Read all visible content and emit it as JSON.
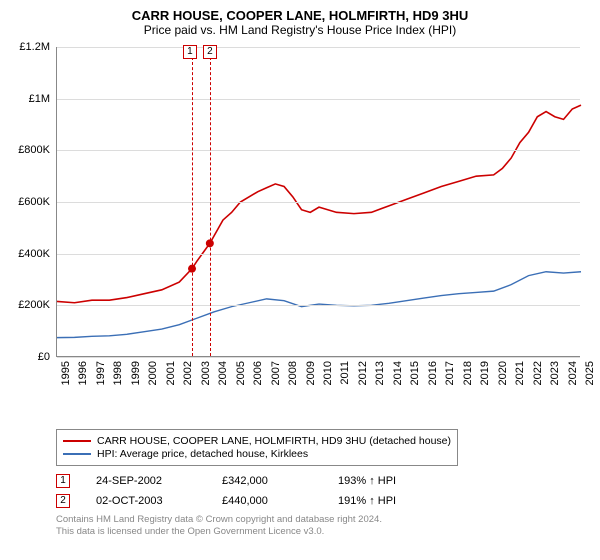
{
  "title": "CARR HOUSE, COOPER LANE, HOLMFIRTH, HD9 3HU",
  "subtitle": "Price paid vs. HM Land Registry's House Price Index (HPI)",
  "chart": {
    "type": "line",
    "background_color": "#ffffff",
    "grid_color": "#dcdcdc",
    "axis_color": "#888888",
    "ylim": [
      0,
      1200000
    ],
    "ytick_step": 200000,
    "yticks": [
      {
        "v": 0,
        "label": "£0"
      },
      {
        "v": 200000,
        "label": "£200K"
      },
      {
        "v": 400000,
        "label": "£400K"
      },
      {
        "v": 600000,
        "label": "£600K"
      },
      {
        "v": 800000,
        "label": "£800K"
      },
      {
        "v": 1000000,
        "label": "£1M"
      },
      {
        "v": 1200000,
        "label": "£1.2M"
      }
    ],
    "xlim": [
      1995,
      2025
    ],
    "xticks": [
      "1995",
      "1996",
      "1997",
      "1998",
      "1999",
      "2000",
      "2001",
      "2002",
      "2003",
      "2004",
      "2005",
      "2006",
      "2007",
      "2008",
      "2009",
      "2010",
      "2011",
      "2012",
      "2013",
      "2014",
      "2015",
      "2016",
      "2017",
      "2018",
      "2019",
      "2020",
      "2021",
      "2022",
      "2023",
      "2024",
      "2025"
    ],
    "series": [
      {
        "name": "price_paid",
        "color": "#cc0000",
        "line_width": 1.6,
        "points": [
          [
            1995,
            215000
          ],
          [
            1996,
            210000
          ],
          [
            1997,
            220000
          ],
          [
            1998,
            220000
          ],
          [
            1999,
            230000
          ],
          [
            2000,
            245000
          ],
          [
            2001,
            260000
          ],
          [
            2002,
            290000
          ],
          [
            2002.73,
            342000
          ],
          [
            2003,
            370000
          ],
          [
            2003.75,
            440000
          ],
          [
            2004,
            470000
          ],
          [
            2004.5,
            530000
          ],
          [
            2005,
            560000
          ],
          [
            2005.5,
            600000
          ],
          [
            2006,
            620000
          ],
          [
            2006.5,
            640000
          ],
          [
            2007,
            655000
          ],
          [
            2007.5,
            670000
          ],
          [
            2008,
            660000
          ],
          [
            2008.5,
            620000
          ],
          [
            2009,
            570000
          ],
          [
            2009.5,
            560000
          ],
          [
            2010,
            580000
          ],
          [
            2011,
            560000
          ],
          [
            2012,
            555000
          ],
          [
            2013,
            560000
          ],
          [
            2014,
            585000
          ],
          [
            2015,
            610000
          ],
          [
            2016,
            635000
          ],
          [
            2017,
            660000
          ],
          [
            2018,
            680000
          ],
          [
            2019,
            700000
          ],
          [
            2020,
            705000
          ],
          [
            2020.5,
            730000
          ],
          [
            2021,
            770000
          ],
          [
            2021.5,
            830000
          ],
          [
            2022,
            870000
          ],
          [
            2022.5,
            930000
          ],
          [
            2023,
            950000
          ],
          [
            2023.5,
            930000
          ],
          [
            2024,
            920000
          ],
          [
            2024.5,
            960000
          ],
          [
            2025,
            975000
          ]
        ]
      },
      {
        "name": "hpi",
        "color": "#3b6fb6",
        "line_width": 1.4,
        "points": [
          [
            1995,
            75000
          ],
          [
            1996,
            76000
          ],
          [
            1997,
            80000
          ],
          [
            1998,
            82000
          ],
          [
            1999,
            88000
          ],
          [
            2000,
            98000
          ],
          [
            2001,
            108000
          ],
          [
            2002,
            125000
          ],
          [
            2003,
            150000
          ],
          [
            2004,
            175000
          ],
          [
            2005,
            195000
          ],
          [
            2006,
            210000
          ],
          [
            2007,
            225000
          ],
          [
            2008,
            218000
          ],
          [
            2009,
            195000
          ],
          [
            2010,
            205000
          ],
          [
            2011,
            200000
          ],
          [
            2012,
            198000
          ],
          [
            2013,
            200000
          ],
          [
            2014,
            208000
          ],
          [
            2015,
            218000
          ],
          [
            2016,
            228000
          ],
          [
            2017,
            238000
          ],
          [
            2018,
            245000
          ],
          [
            2019,
            250000
          ],
          [
            2020,
            255000
          ],
          [
            2021,
            280000
          ],
          [
            2022,
            315000
          ],
          [
            2023,
            330000
          ],
          [
            2024,
            325000
          ],
          [
            2025,
            330000
          ]
        ]
      }
    ],
    "sale_markers": [
      {
        "n": "1",
        "year": 2002.73,
        "value": 342000
      },
      {
        "n": "2",
        "year": 2003.75,
        "value": 440000
      }
    ]
  },
  "legend": {
    "items": [
      {
        "color": "#cc0000",
        "label": "CARR HOUSE, COOPER LANE, HOLMFIRTH, HD9 3HU (detached house)"
      },
      {
        "color": "#3b6fb6",
        "label": "HPI: Average price, detached house, Kirklees"
      }
    ]
  },
  "sales": [
    {
      "n": "1",
      "date": "24-SEP-2002",
      "price": "£342,000",
      "pct": "193% ↑ HPI"
    },
    {
      "n": "2",
      "date": "02-OCT-2003",
      "price": "£440,000",
      "pct": "191% ↑ HPI"
    }
  ],
  "footer_l1": "Contains HM Land Registry data © Crown copyright and database right 2024.",
  "footer_l2": "This data is licensed under the Open Government Licence v3.0."
}
